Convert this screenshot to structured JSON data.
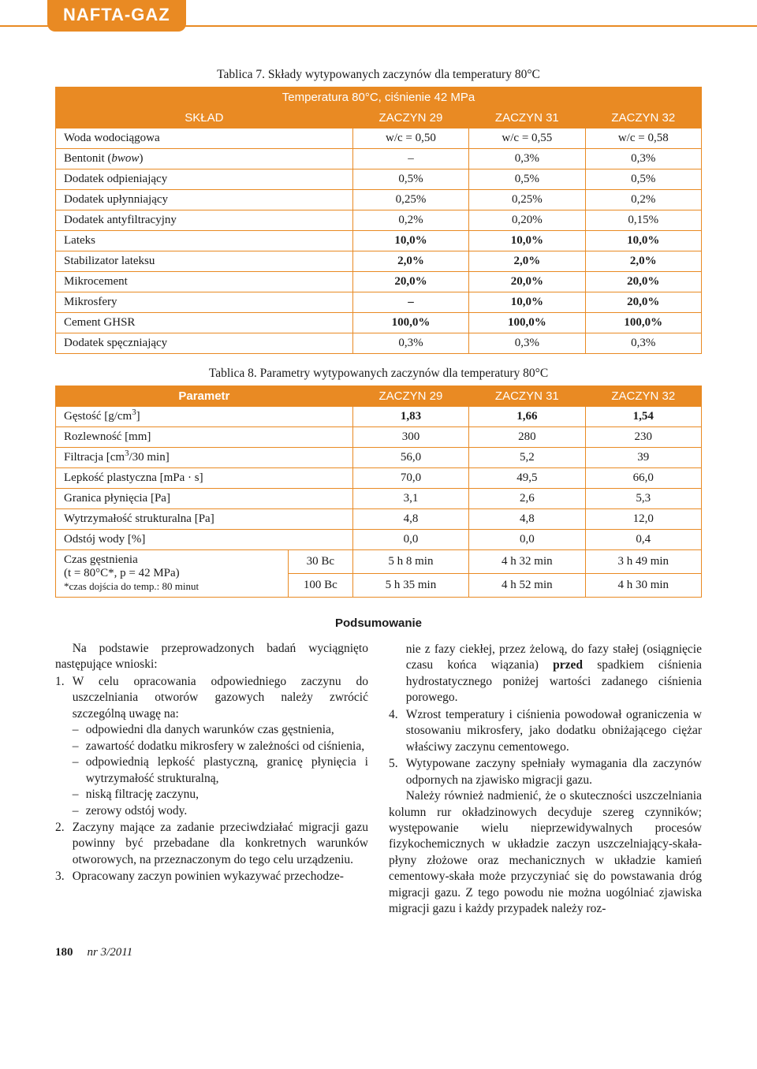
{
  "brand": "NAFTA-GAZ",
  "colors": {
    "accent": "#e98a23",
    "text": "#1a1a1a",
    "bg": "#ffffff"
  },
  "table1": {
    "caption": "Tablica 7. Składy wytypowanych zaczynów dla temperatury 80°C",
    "top_header": "Temperatura 80°C, ciśnienie 42 MPa",
    "col_label": "SKŁAD",
    "columns": [
      "ZACZYN 29",
      "ZACZYN 31",
      "ZACZYN 32"
    ],
    "rows": [
      {
        "label": "Woda wodociągowa",
        "vals": [
          "w/c = 0,50",
          "w/c = 0,55",
          "w/c = 0,58"
        ],
        "bold": false
      },
      {
        "label_html": "Bentonit (<i>bwow</i>)",
        "vals": [
          "–",
          "0,3%",
          "0,3%"
        ],
        "bold": false
      },
      {
        "label": "Dodatek odpieniający",
        "vals": [
          "0,5%",
          "0,5%",
          "0,5%"
        ],
        "bold": false
      },
      {
        "label": "Dodatek upłynniający",
        "vals": [
          "0,25%",
          "0,25%",
          "0,2%"
        ],
        "bold": false
      },
      {
        "label": "Dodatek antyfiltracyjny",
        "vals": [
          "0,2%",
          "0,20%",
          "0,15%"
        ],
        "bold": false
      },
      {
        "label": "Lateks",
        "vals": [
          "10,0%",
          "10,0%",
          "10,0%"
        ],
        "bold": true
      },
      {
        "label": "Stabilizator lateksu",
        "vals": [
          "2,0%",
          "2,0%",
          "2,0%"
        ],
        "bold": true
      },
      {
        "label": "Mikrocement",
        "vals": [
          "20,0%",
          "20,0%",
          "20,0%"
        ],
        "bold": true
      },
      {
        "label": "Mikrosfery",
        "vals": [
          "–",
          "10,0%",
          "20,0%"
        ],
        "bold": true
      },
      {
        "label": "Cement GHSR",
        "vals": [
          "100,0%",
          "100,0%",
          "100,0%"
        ],
        "bold": true
      },
      {
        "label": "Dodatek spęczniający",
        "vals": [
          "0,3%",
          "0,3%",
          "0,3%"
        ],
        "bold": false
      }
    ]
  },
  "table2": {
    "caption": "Tablica 8. Parametry wytypowanych zaczynów dla temperatury 80°C",
    "col_label": "Parametr",
    "columns": [
      "ZACZYN 29",
      "ZACZYN 31",
      "ZACZYN 32"
    ],
    "rows": [
      {
        "label_html": "Gęstość [g/cm<sup>3</sup>]",
        "vals": [
          "1,83",
          "1,66",
          "1,54"
        ],
        "bold": true
      },
      {
        "label": "Rozlewność [mm]",
        "vals": [
          "300",
          "280",
          "230"
        ],
        "bold": false
      },
      {
        "label_html": "Filtracja [cm<sup>3</sup>/30 min]",
        "vals": [
          "56,0",
          "5,2",
          "39"
        ],
        "bold": false
      },
      {
        "label": "Lepkość plastyczna [mPa · s]",
        "vals": [
          "70,0",
          "49,5",
          "66,0"
        ],
        "bold": false
      },
      {
        "label": "Granica płynięcia [Pa]",
        "vals": [
          "3,1",
          "2,6",
          "5,3"
        ],
        "bold": false
      },
      {
        "label": "Wytrzymałość strukturalna [Pa]",
        "vals": [
          "4,8",
          "4,8",
          "12,0"
        ],
        "bold": false
      },
      {
        "label": "Odstój wody [%]",
        "vals": [
          "0,0",
          "0,0",
          "0,4"
        ],
        "bold": false
      }
    ],
    "thick_row": {
      "label_line1": "Czas gęstnienia",
      "label_line2": "(t = 80°C*, p = 42 MPa)",
      "label_line3": "*czas dojścia do temp.: 80 minut",
      "sub": [
        "30 Bc",
        "100 Bc"
      ],
      "vals_top": [
        "5 h 8 min",
        "4 h 32 min",
        "3 h 49 min"
      ],
      "vals_bottom": [
        "5 h 35 min",
        "4 h 52 min",
        "4 h 30 min"
      ]
    }
  },
  "section_heading": "Podsumowanie",
  "left_col": {
    "intro": "Na podstawie przeprowadzonych badań wyciągnięto następujące wnioski:",
    "item1_lead": "W celu opracowania odpowiedniego zaczynu do uszczelniania otworów gazowych należy zwrócić szczególną uwagę na:",
    "item1_dashes": [
      "odpowiedni dla danych warunków czas gęstnienia,",
      "zawartość dodatku mikrosfery w zależności od ciśnienia,",
      "odpowiednią lepkość plastyczną, granicę płynięcia i wytrzymałość strukturalną,",
      "niską filtrację zaczynu,",
      "zerowy odstój wody."
    ],
    "item2": "Zaczyny mające za zadanie przeciwdziałać migracji gazu powinny być przebadane dla konkretnych warunków otworowych, na przeznaczonym do tego celu urządzeniu.",
    "item3": "Opracowany zaczyn powinien wykazywać przechodze-"
  },
  "right_col": {
    "cont_html": "nie z fazy ciekłej, przez żelową, do fazy stałej (osiągnięcie czasu końca wiązania) <b>przed</b> spadkiem ciśnienia hydrostatycznego poniżej wartości zadanego ciśnienia porowego.",
    "item4": "Wzrost temperatury i ciśnienia powodował ograniczenia w stosowaniu mikrosfery, jako dodatku obniżającego ciężar właściwy zaczynu cementowego.",
    "item5": "Wytypowane zaczyny spełniały wymagania dla zaczynów odpornych na zjawisko migracji gazu.",
    "para1": "Należy również nadmienić, że o skuteczności uszczelniania kolumn rur okładzinowych decyduje szereg czynników; występowanie wielu nieprzewidywalnych procesów fizykochemicznych w układzie zaczyn uszczelniający-skała-płyny złożowe oraz mechanicznych w układzie kamień cementowy-skała może przyczyniać się do powstawania dróg migracji gazu. Z tego powodu nie można uogólniać zjawiska migracji gazu i każdy przypadek należy roz-"
  },
  "footer": {
    "page": "180",
    "issue": "nr 3/2011"
  }
}
